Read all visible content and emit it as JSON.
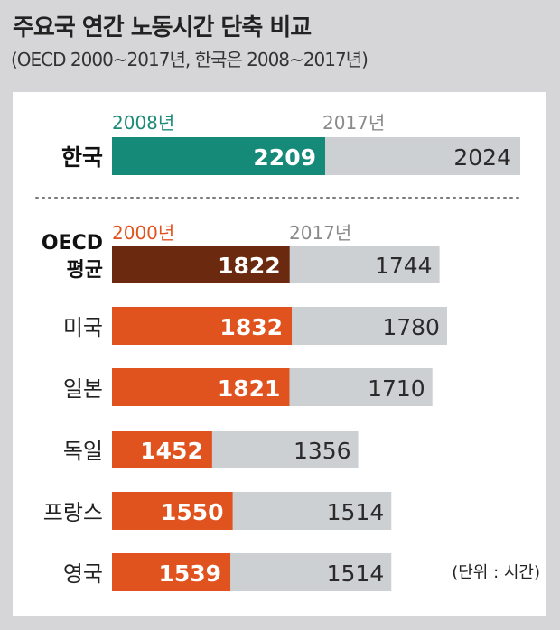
{
  "title": "주요국 연간 노동시간 단축 비교",
  "subtitle": "(OECD 2000~2017년, 한국은 2008~2017년)",
  "unit_note": "(단위 : 시간)",
  "colors": {
    "korea_start": "#168a78",
    "oecd_start": "#6b2a10",
    "country_start": "#e0531f",
    "end": "#cdd0d3",
    "korea_year_label": "#1d8a78",
    "oecd_year_label": "#e0531f",
    "end_year_label": "#8a8a8a"
  },
  "chart_data": {
    "type": "bar",
    "orientation": "horizontal",
    "title": "주요국 연간 노동시간 단축 비교",
    "subtitle": "(OECD 2000~2017년, 한국은 2008~2017년)",
    "unit": "(단위 : 시간)",
    "korea_group": {
      "start_year_label": "2008년",
      "end_year_label": "2017년",
      "rows": [
        {
          "category": "한국",
          "start": 2209,
          "end": 2024
        }
      ]
    },
    "oecd_group": {
      "start_year_label": "2000년",
      "end_year_label": "2017년",
      "rows": [
        {
          "category": "OECD 평균",
          "label_lines": [
            "OECD",
            "평균"
          ],
          "start": 1822,
          "end": 1744
        },
        {
          "category": "미국",
          "label_lines": [
            "미국"
          ],
          "start": 1832,
          "end": 1780
        },
        {
          "category": "일본",
          "label_lines": [
            "일본"
          ],
          "start": 1821,
          "end": 1710
        },
        {
          "category": "독일",
          "label_lines": [
            "독일"
          ],
          "start": 1452,
          "end": 1356
        },
        {
          "category": "프랑스",
          "label_lines": [
            "프랑스"
          ],
          "start": 1550,
          "end": 1514
        },
        {
          "category": "영국",
          "label_lines": [
            "영국"
          ],
          "start": 1539,
          "end": 1514
        }
      ]
    }
  }
}
